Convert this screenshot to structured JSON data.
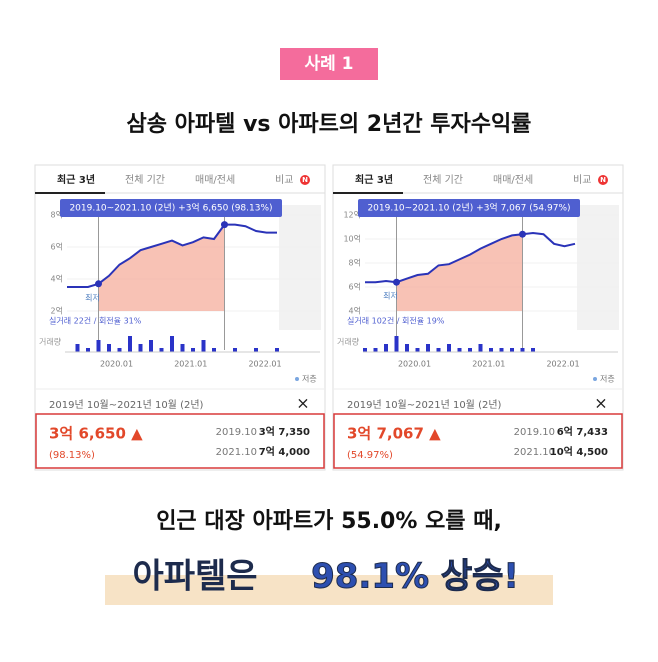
{
  "badge": "사례 1",
  "title": "삼송 아파텔 vs 아파트의 2년간 투자수익률",
  "panels": [
    {
      "tabs": [
        "최근 3년",
        "전체 기간",
        "매매/전세",
        "비교"
      ],
      "new_badge": "N",
      "tooltip": "2019.10~2021.10 (2년)  +3억 6,650 (98.13%)",
      "chart_data": {
        "type": "line",
        "color": "#2a33b8",
        "ylim": [
          2,
          8
        ],
        "yticks": [
          {
            "value": 2,
            "label": "2억"
          },
          {
            "value": 4,
            "label": "4억"
          },
          {
            "value": 6,
            "label": "6억"
          },
          {
            "value": 8,
            "label": "8억"
          }
        ],
        "xtick_labels": [
          "2020.01",
          "2021.01",
          "2022.01"
        ],
        "values": [
          3.5,
          3.5,
          3.5,
          3.7,
          4.2,
          4.9,
          5.3,
          5.8,
          6.0,
          6.2,
          6.4,
          6.1,
          6.3,
          6.6,
          6.5,
          7.4,
          7.4,
          7.3,
          7.0,
          6.9,
          6.9
        ],
        "volume": [
          0,
          2,
          1,
          3,
          2,
          1,
          4,
          2,
          3,
          1,
          4,
          2,
          1,
          3,
          1,
          0,
          1,
          0,
          1,
          0,
          1
        ]
      },
      "low_label": "최저",
      "trade_info": "실거래 22건 / 회전율 31%",
      "volume_label": "거래량",
      "legend": "저층",
      "period": "2019년 10월~2021년 10월 (2년)",
      "close": "×",
      "change": "3억 6,650 ▲",
      "change_pct": "(98.13%)",
      "rows": [
        [
          "2019.10",
          "3억 7,350"
        ],
        [
          "2021.10",
          "7억 4,000"
        ]
      ]
    },
    {
      "tabs": [
        "최근 3년",
        "전체 기간",
        "매매/전세",
        "비교"
      ],
      "new_badge": "N",
      "tooltip": "2019.10~2021.10 (2년)  +3억 7,067 (54.97%)",
      "chart_data": {
        "type": "line",
        "color": "#2a33b8",
        "ylim": [
          4,
          12
        ],
        "yticks": [
          {
            "value": 4,
            "label": "4억"
          },
          {
            "value": 6,
            "label": "6억"
          },
          {
            "value": 8,
            "label": "8억"
          },
          {
            "value": 10,
            "label": "10억"
          },
          {
            "value": 12,
            "label": "12억"
          }
        ],
        "xtick_labels": [
          "2020.01",
          "2021.01",
          "2022.01"
        ],
        "values": [
          6.4,
          6.4,
          6.5,
          6.4,
          6.7,
          7.0,
          7.1,
          7.8,
          7.9,
          8.3,
          8.7,
          9.2,
          9.6,
          10.0,
          10.3,
          10.4,
          10.5,
          10.4,
          9.6,
          9.4,
          9.6
        ],
        "volume": [
          1,
          1,
          2,
          4,
          2,
          1,
          2,
          1,
          2,
          1,
          1,
          2,
          1,
          1,
          1,
          1,
          1,
          0,
          0,
          0,
          0
        ]
      },
      "low_label": "최저",
      "trade_info": "실거래 102건 / 회전율 19%",
      "volume_label": "거래량",
      "legend": "저층",
      "period": "2019년 10월~2021년 10월 (2년)",
      "close": "×",
      "change": "3억 7,067 ▲",
      "change_pct": "(54.97%)",
      "rows": [
        [
          "2019.10",
          "6억 7,433"
        ],
        [
          "2021.10",
          "10억 4,500"
        ]
      ]
    }
  ],
  "footer": {
    "line1": "인근 대장 아파트가 55.0% 오를 때,",
    "line2a": "아파텔은",
    "line2b": "98.1% 상승!"
  }
}
